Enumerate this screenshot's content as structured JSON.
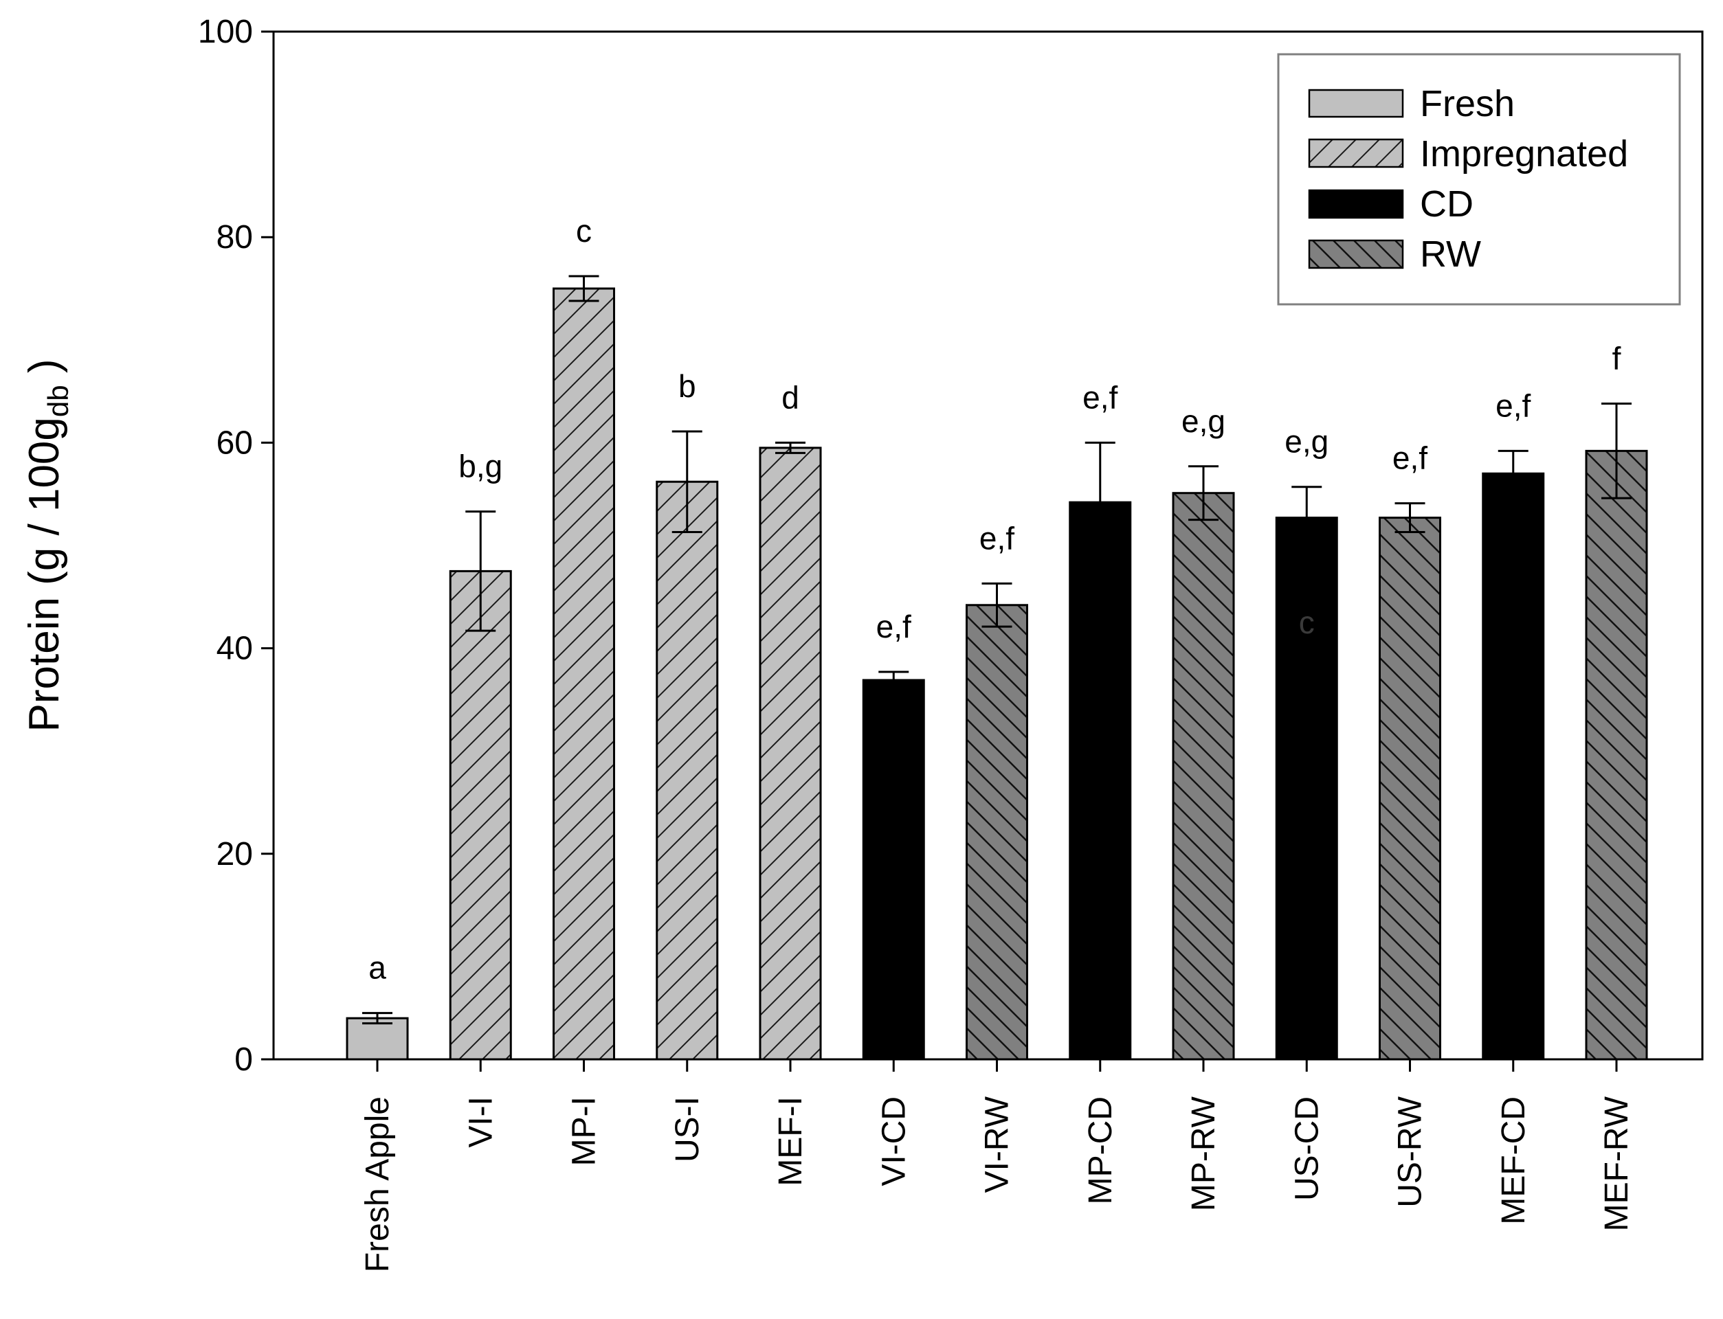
{
  "chart_data": {
    "type": "bar",
    "title": "",
    "xlabel": "",
    "ylabel": {
      "main": "Protein (g / 100g",
      "subscript": "db",
      "close": " )"
    },
    "ylim": [
      0,
      100
    ],
    "yticks": [
      "0",
      "20",
      "40",
      "60",
      "80",
      "100"
    ],
    "ytick_values": [
      0,
      20,
      40,
      60,
      80,
      100
    ],
    "grid": false,
    "legend_position": "top-right",
    "legend": [
      {
        "name": "Fresh",
        "style": "fresh"
      },
      {
        "name": "Impregnated",
        "style": "impregnated"
      },
      {
        "name": "CD",
        "style": "cd"
      },
      {
        "name": "RW",
        "style": "rw"
      }
    ],
    "categories": [
      "Fresh Apple",
      "VI-I",
      "MP-I",
      "US-I",
      "MEF-I",
      "VI-CD",
      "VI-RW",
      "MP-CD",
      "MP-RW",
      "US-CD",
      "US-RW",
      "MEF-CD",
      "MEF-RW"
    ],
    "values": [
      4.0,
      47.5,
      75.0,
      56.2,
      59.5,
      36.9,
      44.2,
      54.2,
      55.1,
      52.7,
      52.7,
      57.0,
      59.2
    ],
    "errors": [
      0.5,
      5.8,
      1.2,
      4.9,
      0.5,
      0.8,
      2.1,
      5.8,
      2.6,
      3.0,
      1.4,
      2.2,
      4.6
    ],
    "groups": [
      "fresh",
      "impregnated",
      "impregnated",
      "impregnated",
      "impregnated",
      "cd",
      "rw",
      "cd",
      "rw",
      "cd",
      "rw",
      "cd",
      "rw"
    ],
    "significance_labels": [
      "a",
      "b,g",
      "c",
      "b",
      "d",
      "e,f",
      "e,f",
      "e,f",
      "e,g",
      "e,g",
      "e,f",
      "e,f",
      "f"
    ],
    "annotations": [
      {
        "text": "c",
        "category": "US-CD",
        "y": 42.5
      }
    ]
  },
  "colors": {
    "fresh": "#c0c0c0",
    "impregnated": "#c0c0c0",
    "cd": "#000000",
    "rw": "#808080",
    "hatch_dark": "#1a1a1a",
    "axis": "#000000",
    "legend_border": "#808080"
  }
}
